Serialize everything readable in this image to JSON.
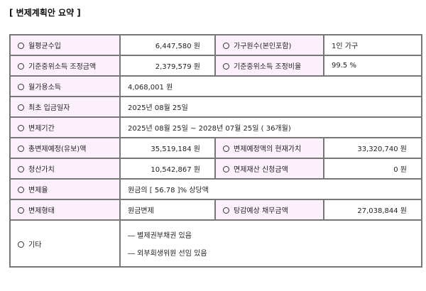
{
  "title": "[ 변제계획안 요약 ]",
  "rows": {
    "monthly_income": {
      "label": "월평균수입",
      "value": "6,447,580 원"
    },
    "household": {
      "label": "가구원수(본인포함)",
      "value": "1인 가구"
    },
    "median_adjusted_amount": {
      "label": "기준중위소득 조정금액",
      "value": "2,379,579 원"
    },
    "median_adjusted_ratio": {
      "label": "기준중위소득 조정비율",
      "value": "99.5 %"
    },
    "disposable_income": {
      "label": "월가용소득",
      "value": "4,068,001 원"
    },
    "first_payment_date": {
      "label": "최초 입금일자",
      "value": "2025년 08월 25일"
    },
    "repayment_period": {
      "label": "변제기간",
      "value": "2025년 08월 25일 ~ 2028년 07월 25일 ( 36개월)"
    },
    "total_repayment": {
      "label": "총변제예정(유보)액",
      "value": "35,519,184 원"
    },
    "present_value": {
      "label": "변제예정액의 현재가치",
      "value": "33,320,740 원"
    },
    "liquidation_value": {
      "label": "청산가치",
      "value": "10,542,867 원"
    },
    "exempt_property": {
      "label": "면제재산 신청금액",
      "value": "0 원"
    },
    "repayment_rate": {
      "label": "변제율",
      "value": "원금의 [ 56.78 ]% 상당액"
    },
    "repayment_type": {
      "label": "변제형태",
      "value": "원금변제"
    },
    "expected_debt": {
      "label": "탕감예상 채무금액",
      "value": "27,038,844 원"
    },
    "other": {
      "label": "기타",
      "items": [
        "― 별제권부채권 있음",
        "― 외부회생위원 선임 있음"
      ]
    }
  },
  "colors": {
    "label_bg": "#fcf0fc",
    "border": "#777777"
  }
}
